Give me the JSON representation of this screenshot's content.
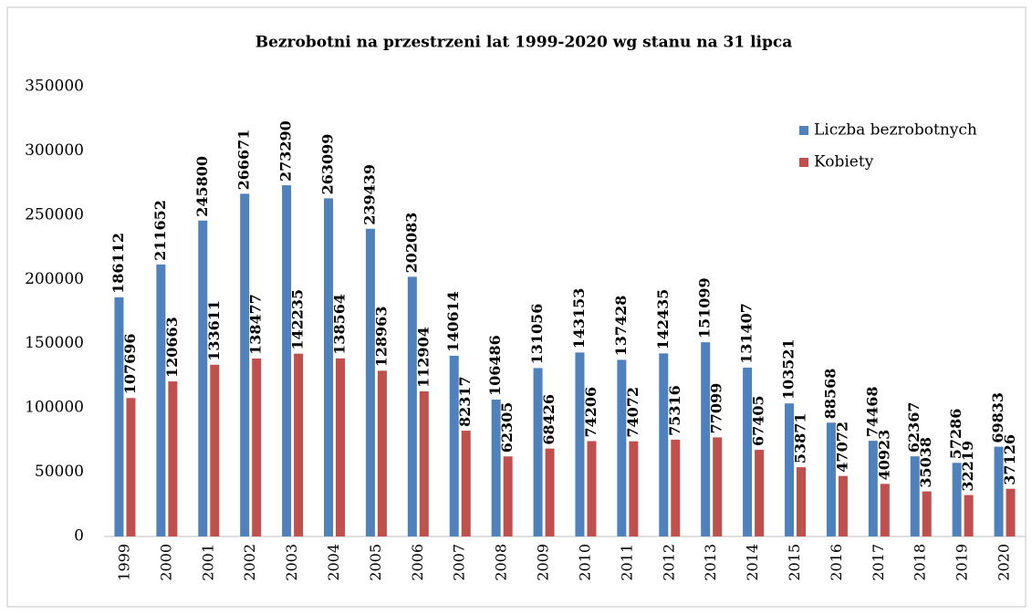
{
  "chart_data": {
    "type": "bar",
    "title": "Bezrobotni na przestrzeni lat 1999-2020 wg stanu na 31 lipca",
    "categories": [
      "1999",
      "2000",
      "2001",
      "2002",
      "2003",
      "2004",
      "2005",
      "2006",
      "2007",
      "2008",
      "2009",
      "2010",
      "2011",
      "2012",
      "2013",
      "2014",
      "2015",
      "2016",
      "2017",
      "2018",
      "2019",
      "2020"
    ],
    "series": [
      {
        "name": "Liczba bezrobotnych",
        "color": "#4f81bd",
        "values": [
          186112,
          211652,
          245800,
          266671,
          273290,
          263099,
          239439,
          202083,
          140614,
          106486,
          131056,
          143153,
          137428,
          142435,
          151099,
          131407,
          103521,
          88568,
          74468,
          62367,
          57286,
          69833
        ]
      },
      {
        "name": "Kobiety",
        "color": "#c0504d",
        "values": [
          107696,
          120663,
          133611,
          138477,
          142235,
          138564,
          128963,
          112904,
          82317,
          62305,
          68426,
          74206,
          74072,
          75316,
          77099,
          67405,
          53871,
          47072,
          40923,
          35038,
          32219,
          37126
        ]
      }
    ],
    "ylim": [
      0,
      350000
    ],
    "yticks": [
      0,
      50000,
      100000,
      150000,
      200000,
      250000,
      300000,
      350000
    ],
    "grid": false,
    "legend": "right"
  }
}
